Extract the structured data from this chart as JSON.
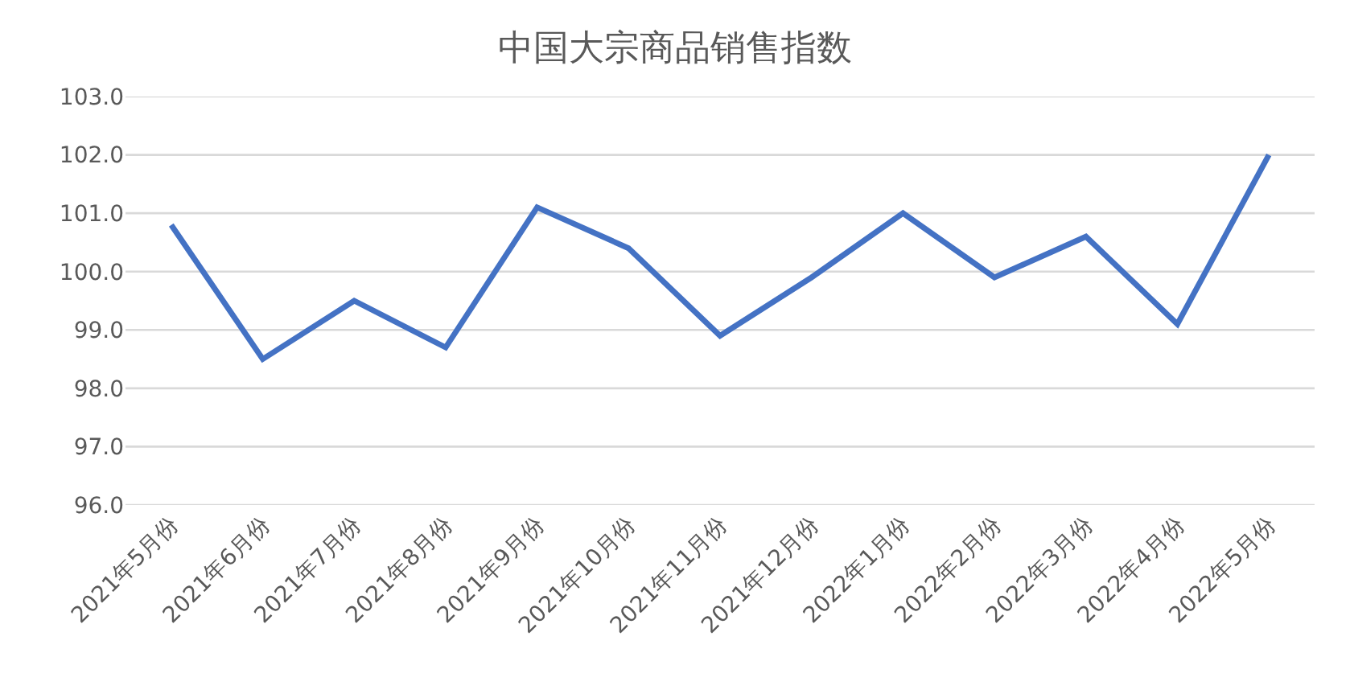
{
  "chart_data": {
    "type": "line",
    "title": "中国大宗商品销售指数",
    "categories": [
      "2021年5月份",
      "2021年6月份",
      "2021年7月份",
      "2021年8月份",
      "2021年9月份",
      "2021年10月份",
      "2021年11月份",
      "2021年12月份",
      "2022年1月份",
      "2022年2月份",
      "2022年3月份",
      "2022年4月份",
      "2022年5月份"
    ],
    "series": [
      {
        "color": "#4472c4",
        "values": [
          100.8,
          98.5,
          99.5,
          98.7,
          101.1,
          100.4,
          98.9,
          99.9,
          101.0,
          99.9,
          100.6,
          99.1,
          102.0
        ]
      }
    ],
    "ylim": [
      96,
      103
    ],
    "yticks": [
      {
        "value": 96,
        "label": "96.0"
      },
      {
        "value": 97,
        "label": "97.0"
      },
      {
        "value": 98,
        "label": "98.0"
      },
      {
        "value": 99,
        "label": "99.0"
      },
      {
        "value": 100,
        "label": "100.0"
      },
      {
        "value": 101,
        "label": "101.0"
      },
      {
        "value": 102,
        "label": "102.0"
      },
      {
        "value": 103,
        "label": "103.0"
      }
    ],
    "grid": "y",
    "marker": "none",
    "line_style": "solid"
  }
}
